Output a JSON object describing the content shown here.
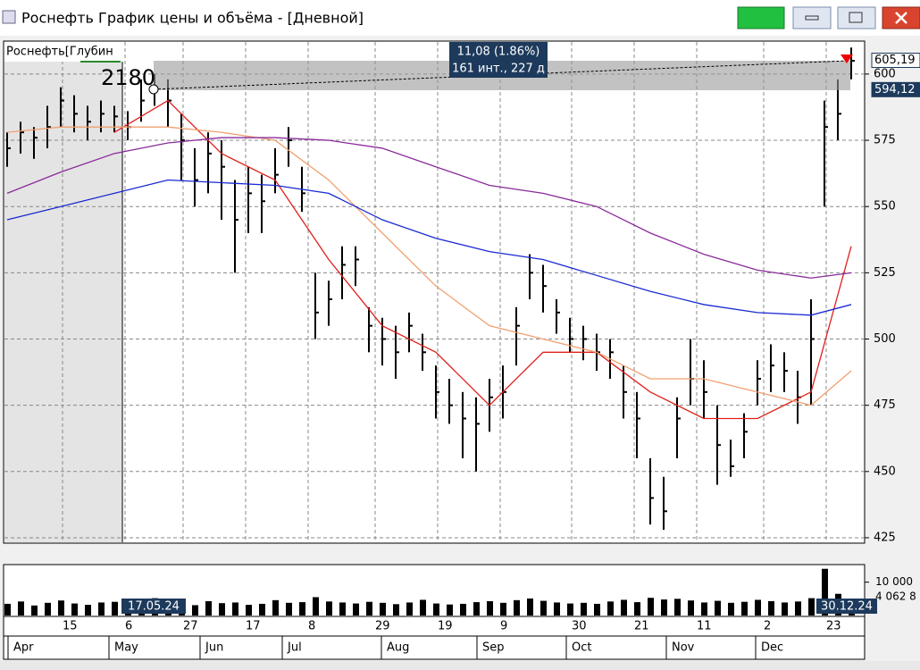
{
  "window": {
    "title": "Роснефть График цены и объёма - [Дневной]"
  },
  "chart_data": [
    {
      "type": "ohlc",
      "legend_label": "Роснефть[Глубин",
      "color": "#000000",
      "annotations": {
        "level": "2180",
        "change": "11,08 (1.86%)",
        "span": "161 инт., 227 д",
        "start_date": "17.05.24",
        "end_date": "30.12.24"
      },
      "price_labels": [
        {
          "value": 605.19,
          "label": "605,19"
        },
        {
          "value": 594.12,
          "label": "594,12"
        }
      ],
      "ylim": [
        423.3,
        612.1
      ],
      "yticks": [
        425,
        450,
        475,
        500,
        525,
        550,
        575,
        600
      ],
      "grid": true,
      "high": [
        578,
        582,
        580,
        588,
        595,
        592,
        588,
        590,
        588,
        586,
        598,
        600,
        598,
        585,
        572,
        578,
        575,
        560,
        565,
        562,
        572,
        580,
        565,
        525,
        522,
        535,
        535,
        512,
        508,
        505,
        510,
        502,
        490,
        485,
        480,
        478,
        485,
        490,
        512,
        532,
        528,
        515,
        508,
        505,
        502,
        500,
        490,
        480,
        455,
        448,
        478,
        500,
        492,
        475,
        462,
        472,
        492,
        498,
        495,
        488,
        515,
        590,
        598,
        610
      ],
      "low": [
        565,
        570,
        568,
        572,
        580,
        578,
        575,
        578,
        578,
        575,
        582,
        588,
        580,
        560,
        550,
        555,
        545,
        525,
        540,
        540,
        555,
        565,
        548,
        500,
        505,
        515,
        520,
        495,
        490,
        485,
        495,
        488,
        470,
        468,
        455,
        450,
        465,
        470,
        490,
        515,
        510,
        502,
        495,
        492,
        488,
        485,
        470,
        455,
        430,
        428,
        455,
        475,
        470,
        445,
        448,
        455,
        475,
        480,
        480,
        468,
        475,
        550,
        575,
        598
      ],
      "close": [
        572,
        578,
        576,
        580,
        590,
        585,
        582,
        585,
        584,
        580,
        590,
        595,
        590,
        575,
        560,
        570,
        565,
        545,
        555,
        552,
        562,
        575,
        555,
        510,
        515,
        528,
        530,
        505,
        500,
        495,
        505,
        495,
        480,
        475,
        470,
        468,
        478,
        480,
        505,
        525,
        520,
        510,
        500,
        500,
        495,
        495,
        480,
        470,
        440,
        435,
        470,
        485,
        480,
        460,
        452,
        465,
        485,
        490,
        488,
        478,
        500,
        580,
        585,
        605
      ],
      "ma_x": [
        0,
        4,
        8,
        12,
        16,
        20,
        24,
        28,
        32,
        36,
        40,
        44,
        48,
        52,
        56,
        60,
        63
      ],
      "moving_averages": [
        {
          "color": "#e0201c",
          "values": [
            null,
            null,
            578,
            590,
            570,
            560,
            530,
            505,
            495,
            475,
            495,
            495,
            480,
            470,
            470,
            480,
            535
          ]
        },
        {
          "color": "#f0a070",
          "values": [
            578,
            580,
            580,
            580,
            578,
            575,
            560,
            540,
            520,
            505,
            500,
            495,
            485,
            485,
            480,
            475,
            488
          ]
        },
        {
          "color": "#8a2a9a",
          "values": [
            555,
            563,
            570,
            574,
            576,
            576,
            575,
            572,
            565,
            558,
            555,
            550,
            540,
            532,
            526,
            523,
            525
          ]
        },
        {
          "color": "#1a2ad0",
          "values": [
            545,
            550,
            555,
            560,
            559,
            558,
            555,
            545,
            538,
            533,
            530,
            524,
            518,
            513,
            510,
            509,
            513
          ]
        }
      ]
    },
    {
      "type": "volume",
      "color": "#000000",
      "ylim": [
        0,
        15000
      ],
      "yticks": [
        {
          "value": 10000,
          "label": "10 000"
        }
      ],
      "last_label": "4 062 8",
      "values": [
        3500,
        4200,
        3000,
        3800,
        4500,
        3600,
        3200,
        3900,
        4100,
        3300,
        4800,
        5200,
        4000,
        3600,
        3100,
        4300,
        3700,
        3900,
        3200,
        3500,
        4600,
        3800,
        4000,
        5500,
        4200,
        3900,
        3600,
        4100,
        3800,
        3400,
        3900,
        4700,
        3600,
        3300,
        3500,
        4000,
        4300,
        3800,
        4600,
        5100,
        4400,
        3900,
        3600,
        3800,
        3500,
        4200,
        4700,
        4000,
        5300,
        4800,
        5000,
        4500,
        3900,
        4400,
        3800,
        4100,
        4700,
        4300,
        3900,
        4200,
        5200,
        14000,
        6500,
        4062.8
      ]
    }
  ],
  "x_axis": {
    "days": [
      "15",
      "6",
      "27",
      "17",
      "8",
      "29",
      "19",
      "9",
      "30",
      "21",
      "11",
      "2",
      "23"
    ],
    "months": [
      "Apr",
      "May",
      "Jun",
      "Jul",
      "Aug",
      "Sep",
      "Oct",
      "Nov",
      "Dec"
    ]
  }
}
